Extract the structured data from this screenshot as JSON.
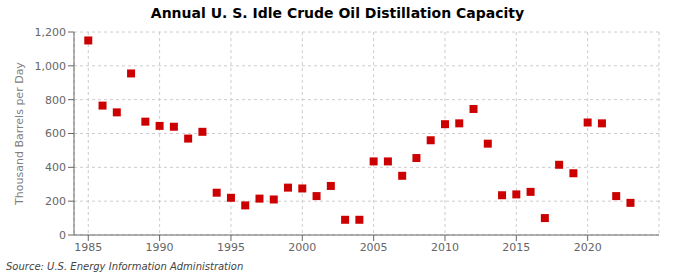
{
  "chart_data": {
    "type": "scatter",
    "title": "Annual U. S. Idle Crude Oil Distillation Capacity",
    "ylabel": "Thousand Barrels per Day",
    "annotations": [
      "Source: U.S. Energy Information Administration"
    ],
    "x": [
      1985,
      1986,
      1987,
      1988,
      1989,
      1990,
      1991,
      1992,
      1993,
      1994,
      1995,
      1996,
      1997,
      1998,
      1999,
      2000,
      2001,
      2002,
      2003,
      2004,
      2005,
      2006,
      2007,
      2008,
      2009,
      2010,
      2011,
      2012,
      2013,
      2014,
      2015,
      2016,
      2017,
      2018,
      2019,
      2020,
      2021,
      2022,
      2023
    ],
    "values": [
      1150,
      765,
      725,
      955,
      670,
      645,
      640,
      570,
      610,
      250,
      220,
      175,
      215,
      210,
      280,
      275,
      230,
      290,
      90,
      90,
      435,
      435,
      350,
      455,
      560,
      655,
      660,
      745,
      540,
      235,
      240,
      255,
      100,
      415,
      365,
      665,
      660,
      230,
      190
    ],
    "color": "#cc0000",
    "marker": "square",
    "xlim": [
      1984,
      2025
    ],
    "xticks": [
      1985,
      1990,
      1995,
      2000,
      2005,
      2010,
      2015,
      2020
    ],
    "ylim": [
      0,
      1200
    ],
    "yticks": [
      0,
      200,
      400,
      600,
      800,
      {
        "value": 1000,
        "label": "1,000"
      },
      {
        "value": 1200,
        "label": "1,200"
      }
    ],
    "grid": true
  }
}
